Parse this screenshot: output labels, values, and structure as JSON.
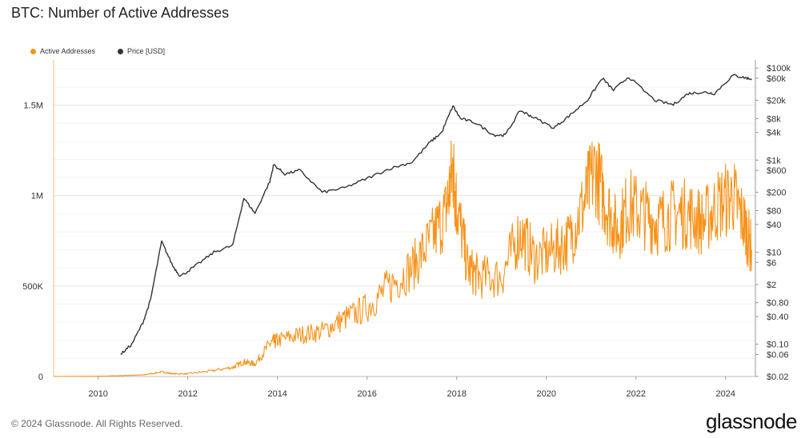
{
  "title": "BTC: Number of Active Addresses",
  "legend": [
    {
      "label": "Active Addresses",
      "color": "#f7931a"
    },
    {
      "label": "Price [USD]",
      "color": "#333333"
    }
  ],
  "footer": "© 2024 Glassnode. All Rights Reserved.",
  "brand": "glassnode",
  "chart_data": {
    "type": "line",
    "title": "BTC: Number of Active Addresses",
    "x_ticks": [
      "2010",
      "2012",
      "2014",
      "2016",
      "2018",
      "2020",
      "2022",
      "2024"
    ],
    "xlim": [
      "2009-01-03",
      "2024-08-31"
    ],
    "y_left": {
      "ticks": [
        {
          "value": 0,
          "label": "0"
        },
        {
          "value": 500000,
          "label": "500K"
        },
        {
          "value": 1000000,
          "label": "1M"
        },
        {
          "value": 1500000,
          "label": "1.5M"
        }
      ],
      "ylim": [
        0,
        1750000
      ]
    },
    "y_right": {
      "scale": "log",
      "ticks": [
        {
          "value": 100000,
          "label": "$100k"
        },
        {
          "value": 60000,
          "label": "$60k"
        },
        {
          "value": 20000,
          "label": "$20k"
        },
        {
          "value": 8000,
          "label": "$8k"
        },
        {
          "value": 4000,
          "label": "$4k"
        },
        {
          "value": 1000,
          "label": "$1k"
        },
        {
          "value": 600,
          "label": "$600"
        },
        {
          "value": 200,
          "label": "$200"
        },
        {
          "value": 80,
          "label": "$80"
        },
        {
          "value": 40,
          "label": "$40"
        },
        {
          "value": 10,
          "label": "$10"
        },
        {
          "value": 6,
          "label": "$6"
        },
        {
          "value": 2,
          "label": "$2"
        },
        {
          "value": 0.8,
          "label": "$0.80"
        },
        {
          "value": 0.4,
          "label": "$0.40"
        },
        {
          "value": 0.1,
          "label": "$0.10"
        },
        {
          "value": 0.06,
          "label": "$0.06"
        },
        {
          "value": 0.02,
          "label": "$0.02"
        }
      ],
      "ylim": [
        0.02,
        150000
      ]
    },
    "grid": true,
    "legend_position": "top-left",
    "series": [
      {
        "name": "Active Addresses",
        "color": "#f7931a",
        "axis": "left",
        "x": [
          "2009-01",
          "2010-01",
          "2010-07",
          "2011-01",
          "2011-06",
          "2011-09",
          "2012-01",
          "2012-07",
          "2013-01",
          "2013-04",
          "2013-07",
          "2013-11",
          "2014-01",
          "2014-07",
          "2015-01",
          "2015-07",
          "2016-01",
          "2016-07",
          "2017-01",
          "2017-06",
          "2017-10",
          "2017-12",
          "2018-01",
          "2018-04",
          "2018-07",
          "2019-01",
          "2019-06",
          "2019-10",
          "2020-03",
          "2020-07",
          "2020-11",
          "2021-02",
          "2021-05",
          "2021-08",
          "2021-11",
          "2022-03",
          "2022-07",
          "2022-11",
          "2023-03",
          "2023-07",
          "2023-11",
          "2024-03",
          "2024-06",
          "2024-08"
        ],
        "values": [
          0,
          1000,
          5000,
          8000,
          25000,
          15000,
          15000,
          30000,
          50000,
          80000,
          70000,
          180000,
          200000,
          230000,
          250000,
          320000,
          380000,
          500000,
          600000,
          750000,
          900000,
          1150000,
          950000,
          600000,
          550000,
          550000,
          800000,
          650000,
          700000,
          750000,
          950000,
          1150000,
          950000,
          800000,
          950000,
          900000,
          850000,
          900000,
          900000,
          850000,
          950000,
          1000000,
          850000,
          700000
        ]
      },
      {
        "name": "Price [USD]",
        "color": "#333333",
        "axis": "right",
        "x": [
          "2010-07",
          "2010-10",
          "2011-01",
          "2011-03",
          "2011-06",
          "2011-09",
          "2011-11",
          "2012-03",
          "2012-08",
          "2013-01",
          "2013-04",
          "2013-07",
          "2013-11",
          "2013-12",
          "2014-03",
          "2014-07",
          "2015-01",
          "2015-07",
          "2016-01",
          "2016-07",
          "2017-01",
          "2017-06",
          "2017-09",
          "2017-12",
          "2018-02",
          "2018-06",
          "2018-11",
          "2019-02",
          "2019-06",
          "2019-09",
          "2020-03",
          "2020-07",
          "2020-12",
          "2021-04",
          "2021-07",
          "2021-11",
          "2022-06",
          "2022-11",
          "2023-03",
          "2023-07",
          "2023-10",
          "2024-03",
          "2024-06",
          "2024-08"
        ],
        "values": [
          0.06,
          0.1,
          0.3,
          0.9,
          17,
          5,
          3,
          5,
          10,
          14,
          150,
          70,
          350,
          800,
          500,
          600,
          200,
          250,
          400,
          650,
          900,
          2500,
          4000,
          15000,
          8000,
          6500,
          3500,
          3500,
          12000,
          9000,
          5000,
          9000,
          20000,
          60000,
          33000,
          65000,
          20000,
          16000,
          28000,
          30000,
          28000,
          70000,
          62000,
          58000
        ]
      }
    ]
  }
}
